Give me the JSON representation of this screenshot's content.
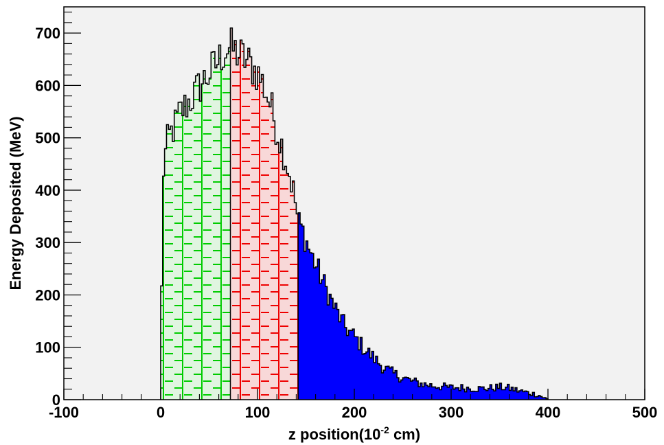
{
  "chart_data": {
    "type": "bar",
    "subtype": "stacked-region-histogram",
    "title": "",
    "xlabel": "z position(10",
    "xlabel_sup": "-2",
    "xlabel_suffix": " cm)",
    "ylabel": "Energy Deposited (MeV)",
    "xlim": [
      -100,
      500
    ],
    "ylim": [
      0,
      750
    ],
    "x_ticks": [
      -100,
      0,
      100,
      200,
      300,
      400,
      500
    ],
    "y_ticks": [
      0,
      100,
      200,
      300,
      400,
      500,
      600,
      700
    ],
    "bin_width": 2,
    "grid": false,
    "legend": "none",
    "colors": {
      "background": "#f2f2f2",
      "outline": "#000000",
      "region1_line": "#00cc00",
      "region1_fill": "#e0f5e0",
      "region2_line": "#ee0000",
      "region2_fill": "#f8d8d8",
      "region3_fill": "#0000ff"
    },
    "regions": [
      {
        "x_start": 0,
        "x_end": 72
      },
      {
        "x_start": 72,
        "x_end": 142
      },
      {
        "x_start": 142,
        "x_end": 400
      }
    ],
    "profile": {
      "x": [
        0,
        2,
        4,
        8,
        14,
        20,
        30,
        40,
        50,
        60,
        66,
        70,
        74,
        80,
        86,
        90,
        96,
        102,
        108,
        114,
        120,
        126,
        132,
        138,
        142,
        146,
        150,
        156,
        162,
        170,
        180,
        190,
        200,
        210,
        220,
        230,
        240,
        250,
        260,
        270,
        280,
        290,
        300,
        310,
        320,
        330,
        340,
        350,
        360,
        370,
        380,
        390,
        400
      ],
      "y": [
        0,
        420,
        460,
        500,
        520,
        548,
        570,
        598,
        622,
        648,
        666,
        672,
        670,
        660,
        652,
        645,
        632,
        618,
        592,
        560,
        515,
        480,
        440,
        390,
        340,
        325,
        305,
        275,
        250,
        215,
        175,
        140,
        120,
        98,
        80,
        62,
        50,
        42,
        35,
        30,
        27,
        25,
        23,
        23,
        22,
        21,
        22,
        24,
        22,
        17,
        13,
        9,
        0
      ]
    }
  }
}
